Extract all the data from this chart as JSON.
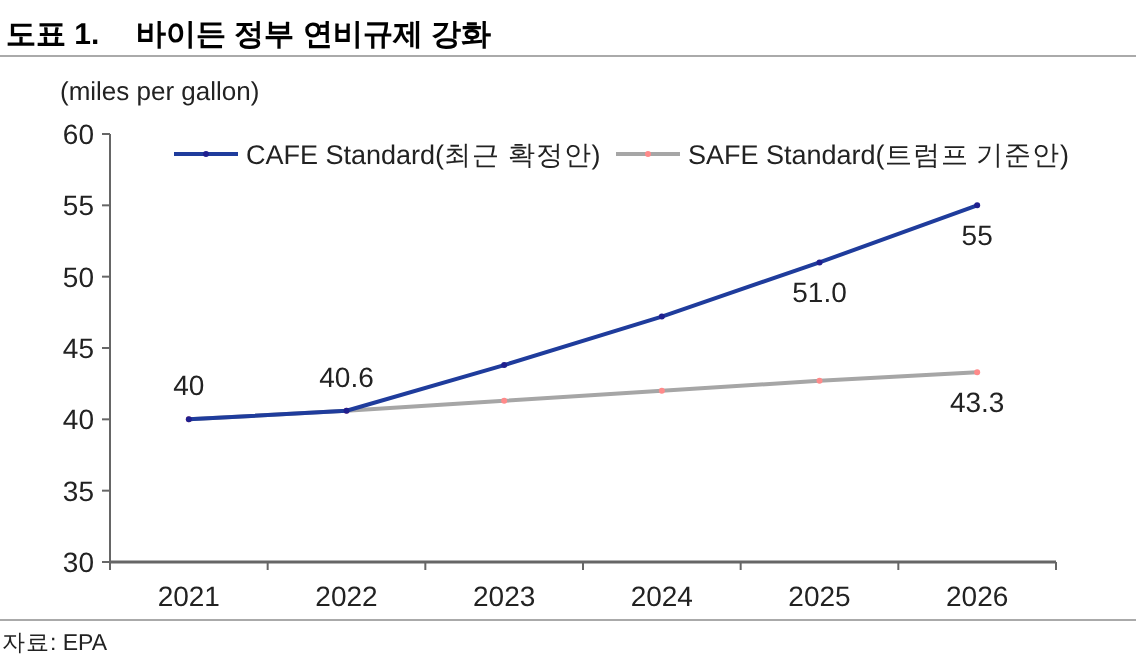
{
  "chart_data": {
    "type": "line",
    "title": "바이든 정부 연비규제 강화",
    "subtitle": "도표 1.",
    "ylabel": "(miles per gallon)",
    "annotations": [
      "자료: EPA"
    ],
    "categories": [
      "2021",
      "2022",
      "2023",
      "2024",
      "2025",
      "2026"
    ],
    "series": [
      {
        "name": "CAFE Standard(최근 확정안)",
        "color": "#1f3c9c",
        "values": [
          40,
          40.6,
          43.8,
          47.2,
          51.0,
          55
        ],
        "value_labels": [
          "40",
          "40.6",
          null,
          null,
          "51.0",
          "55"
        ]
      },
      {
        "name": "SAFE Standard(트럼프 기준안)",
        "color": "#a6a6a6",
        "values": [
          40,
          40.6,
          41.3,
          42.0,
          42.7,
          43.3
        ],
        "value_labels": [
          null,
          null,
          null,
          null,
          null,
          "43.3"
        ]
      }
    ],
    "ylim": [
      30,
      60
    ],
    "yticks": [
      30,
      35,
      40,
      45,
      50,
      55,
      60
    ],
    "grid": false,
    "legend": "top",
    "marker": "circle",
    "line_style": "solid"
  }
}
